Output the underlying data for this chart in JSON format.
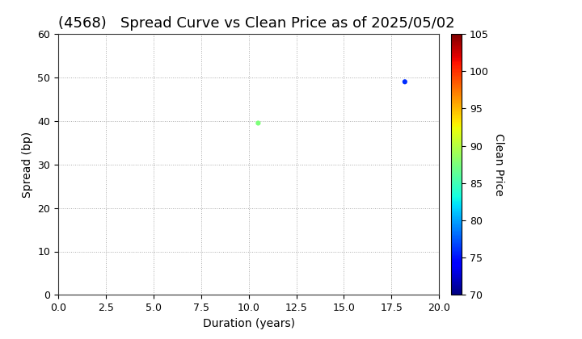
{
  "title": "(4568)   Spread Curve vs Clean Price as of 2025/05/02",
  "xlabel": "Duration (years)",
  "ylabel": "Spread (bp)",
  "colorbar_label": "Clean Price",
  "xlim": [
    0.0,
    20.0
  ],
  "ylim": [
    0,
    60
  ],
  "xticks": [
    0.0,
    2.5,
    5.0,
    7.5,
    10.0,
    12.5,
    15.0,
    17.5,
    20.0
  ],
  "yticks": [
    0,
    10,
    20,
    30,
    40,
    50,
    60
  ],
  "colorbar_min": 70,
  "colorbar_max": 105,
  "colorbar_ticks": [
    70,
    75,
    80,
    85,
    90,
    95,
    100,
    105
  ],
  "points": [
    {
      "duration": 10.5,
      "spread": 39.5,
      "clean_price": 87.5
    },
    {
      "duration": 18.2,
      "spread": 49.0,
      "clean_price": 76.0
    }
  ],
  "background_color": "#ffffff",
  "grid_color": "#aaaaaa",
  "title_fontsize": 13,
  "axis_fontsize": 10,
  "tick_fontsize": 9,
  "marker_size": 20
}
